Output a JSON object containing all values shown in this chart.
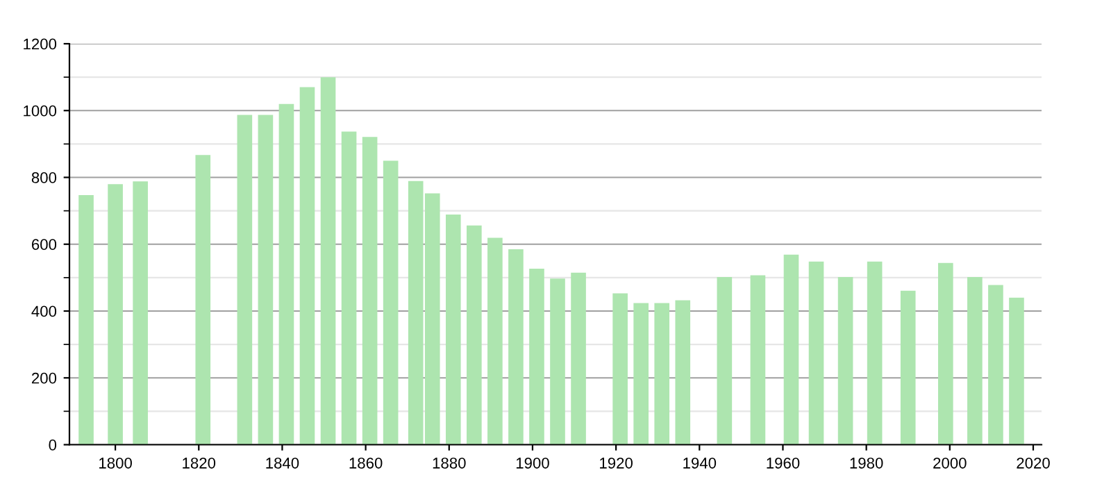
{
  "chart_data": {
    "type": "bar",
    "x": [
      1793,
      1800,
      1806,
      1821,
      1831,
      1836,
      1841,
      1846,
      1851,
      1856,
      1861,
      1866,
      1872,
      1876,
      1881,
      1886,
      1891,
      1896,
      1901,
      1906,
      1911,
      1921,
      1926,
      1931,
      1936,
      1946,
      1954,
      1962,
      1968,
      1975,
      1982,
      1990,
      1999,
      2006,
      2011,
      2016
    ],
    "values": [
      747,
      780,
      788,
      867,
      987,
      987,
      1020,
      1070,
      1100,
      937,
      921,
      850,
      789,
      752,
      689,
      656,
      619,
      585,
      527,
      497,
      515,
      453,
      424,
      424,
      432,
      502,
      507,
      569,
      548,
      502,
      548,
      461,
      544,
      502,
      478,
      440
    ],
    "color": "#ade5af",
    "xlim": [
      1789,
      2022
    ],
    "xticks": [
      1800,
      1820,
      1840,
      1860,
      1880,
      1900,
      1920,
      1940,
      1960,
      1980,
      2000,
      2020
    ],
    "ylim": [
      0,
      1200
    ],
    "yticks": [
      0,
      200,
      400,
      600,
      800,
      1000,
      1200
    ],
    "grid": "y"
  }
}
